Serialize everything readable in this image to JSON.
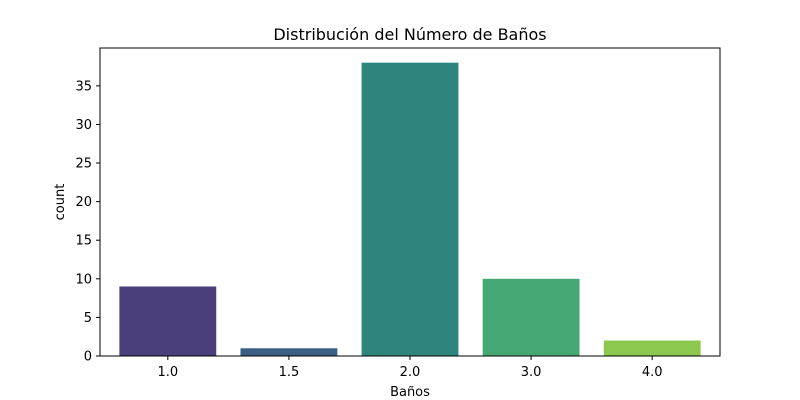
{
  "chart_data": {
    "type": "bar",
    "title": "Distribución del Número de Baños",
    "xlabel": "Baños",
    "ylabel": "count",
    "categories": [
      "1.0",
      "1.5",
      "2.0",
      "3.0",
      "4.0"
    ],
    "values": [
      9,
      1,
      38,
      10,
      2
    ],
    "colors": [
      "#4a3f7b",
      "#3b5e85",
      "#2e857d",
      "#45a874",
      "#8dc84e"
    ],
    "ylim": [
      0,
      39.9
    ],
    "yticks": [
      0,
      5,
      10,
      15,
      20,
      25,
      30,
      35
    ],
    "grid": false,
    "legend": "none"
  }
}
